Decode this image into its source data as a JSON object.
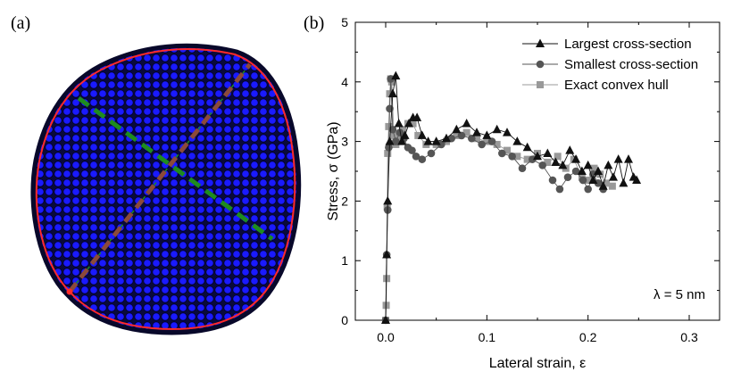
{
  "panel_a": {
    "label": "(a)",
    "particle_color": "#1a1aff",
    "particle_edge_color": "#000033",
    "convex_hull_color": "#ff2a2a",
    "largest_section_color": "#1e8c1e",
    "smallest_section_color": "#8b4a3a"
  },
  "chart_data": {
    "type": "line",
    "panel_label": "(b)",
    "xlabel": "Lateral strain, ε",
    "ylabel": "Stress, σ (GPa)",
    "xlim": [
      -0.03,
      0.33
    ],
    "ylim": [
      0,
      5
    ],
    "xticks": [
      0.0,
      0.1,
      0.2,
      0.3
    ],
    "xtick_labels": [
      "0.0",
      "0.1",
      "0.2",
      "0.3"
    ],
    "yticks": [
      0,
      1,
      2,
      3,
      4,
      5
    ],
    "ytick_labels": [
      "0",
      "1",
      "2",
      "3",
      "4",
      "5"
    ],
    "annotation": "λ = 5 nm",
    "legend_position": "top-right",
    "series": [
      {
        "name": "Largest cross-section",
        "marker": "triangle",
        "color": "#111111",
        "x": [
          0.0,
          0.001,
          0.002,
          0.004,
          0.007,
          0.01,
          0.013,
          0.016,
          0.019,
          0.023,
          0.027,
          0.031,
          0.036,
          0.042,
          0.05,
          0.06,
          0.07,
          0.08,
          0.09,
          0.1,
          0.11,
          0.12,
          0.13,
          0.14,
          0.15,
          0.16,
          0.168,
          0.175,
          0.182,
          0.188,
          0.194,
          0.2,
          0.205,
          0.21,
          0.215,
          0.22,
          0.225,
          0.23,
          0.235,
          0.24,
          0.245,
          0.248
        ],
        "y": [
          0.0,
          1.1,
          2.0,
          3.0,
          3.8,
          4.1,
          3.3,
          3.0,
          3.1,
          3.3,
          3.4,
          3.4,
          3.1,
          3.0,
          3.0,
          3.05,
          3.2,
          3.3,
          3.15,
          3.1,
          3.2,
          3.15,
          3.0,
          2.9,
          2.75,
          2.8,
          2.65,
          2.6,
          2.85,
          2.7,
          2.5,
          2.6,
          2.35,
          2.5,
          2.25,
          2.6,
          2.4,
          2.7,
          2.3,
          2.7,
          2.4,
          2.35
        ]
      },
      {
        "name": "Smallest cross-section",
        "marker": "circle",
        "color": "#555555",
        "x": [
          0.0,
          0.001,
          0.002,
          0.003,
          0.004,
          0.005,
          0.007,
          0.01,
          0.014,
          0.018,
          0.022,
          0.026,
          0.03,
          0.036,
          0.045,
          0.055,
          0.065,
          0.075,
          0.085,
          0.095,
          0.105,
          0.115,
          0.125,
          0.135,
          0.145,
          0.155,
          0.165,
          0.172,
          0.18,
          0.188,
          0.195,
          0.2,
          0.205,
          0.21,
          0.215
        ],
        "y": [
          0.0,
          1.1,
          1.85,
          2.9,
          3.55,
          4.05,
          3.2,
          3.0,
          3.15,
          3.05,
          2.9,
          2.85,
          2.75,
          2.7,
          2.8,
          2.95,
          3.05,
          3.1,
          3.05,
          2.95,
          3.0,
          2.8,
          2.75,
          2.55,
          2.7,
          2.6,
          2.35,
          2.2,
          2.4,
          2.5,
          2.35,
          2.2,
          2.45,
          2.3,
          2.2
        ]
      },
      {
        "name": "Exact convex hull",
        "marker": "square",
        "color": "#999999",
        "x": [
          0.0,
          0.0005,
          0.001,
          0.0015,
          0.002,
          0.003,
          0.004,
          0.005,
          0.006,
          0.008,
          0.01,
          0.013,
          0.017,
          0.022,
          0.027,
          0.032,
          0.04,
          0.05,
          0.06,
          0.07,
          0.08,
          0.09,
          0.1,
          0.11,
          0.12,
          0.13,
          0.14,
          0.15,
          0.16,
          0.17,
          0.178,
          0.186,
          0.194,
          0.2,
          0.206,
          0.212,
          0.218,
          0.224
        ],
        "y": [
          0.0,
          0.25,
          0.7,
          1.9,
          2.8,
          3.25,
          3.8,
          4.05,
          4.0,
          3.1,
          2.95,
          3.05,
          3.2,
          3.3,
          3.3,
          3.1,
          2.95,
          2.95,
          3.0,
          3.1,
          3.15,
          3.05,
          3.0,
          2.95,
          2.85,
          2.75,
          2.7,
          2.8,
          2.65,
          2.75,
          2.55,
          2.7,
          2.4,
          2.35,
          2.55,
          2.45,
          2.3,
          2.25
        ]
      }
    ]
  }
}
